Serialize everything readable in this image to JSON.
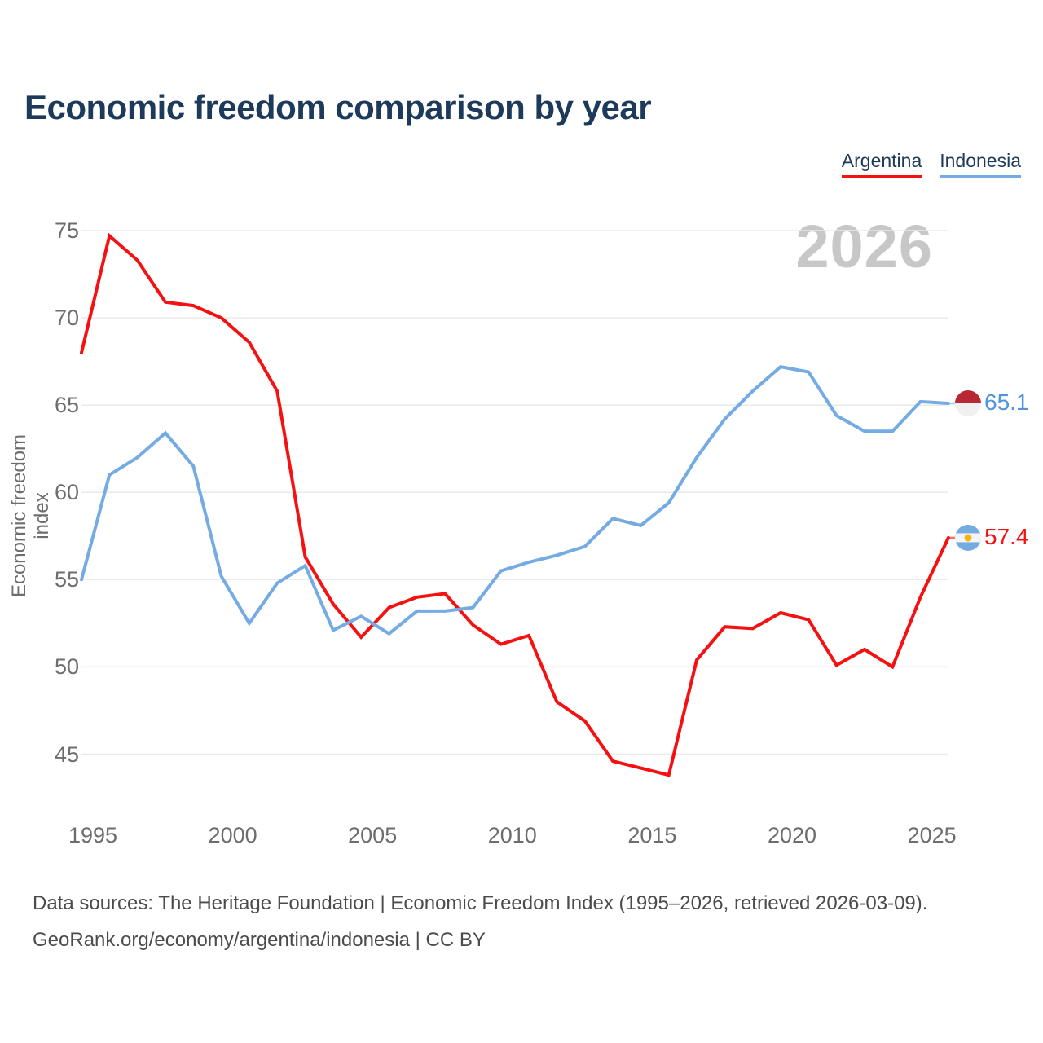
{
  "chart_data": {
    "type": "line",
    "title": "Economic freedom comparison by year",
    "ylabel": "Economic freedom index",
    "watermark": "2026",
    "grid": "horizontal-only",
    "legend_position": "top-right",
    "xlim": [
      1995,
      2026
    ],
    "ylim": [
      42.5,
      75
    ],
    "x_ticks": [
      1995,
      2000,
      2005,
      2010,
      2015,
      2020,
      2025
    ],
    "y_ticks": [
      45,
      50,
      55,
      60,
      65,
      70,
      75
    ],
    "x": [
      1995,
      1996,
      1997,
      1998,
      1999,
      2000,
      2001,
      2002,
      2003,
      2004,
      2005,
      2006,
      2007,
      2008,
      2009,
      2010,
      2011,
      2012,
      2013,
      2014,
      2015,
      2016,
      2017,
      2018,
      2019,
      2020,
      2021,
      2022,
      2023,
      2024,
      2025,
      2026
    ],
    "series": [
      {
        "name": "Argentina",
        "color": "#f51111",
        "label_color": "#f51111",
        "flag": "argentina",
        "end_label": "57.4",
        "values": [
          68.0,
          74.7,
          73.3,
          70.9,
          70.7,
          70.0,
          68.6,
          65.8,
          56.3,
          53.6,
          51.7,
          53.4,
          54.0,
          54.2,
          52.4,
          51.3,
          51.8,
          48.0,
          46.9,
          44.6,
          44.2,
          43.8,
          50.4,
          52.3,
          52.2,
          53.1,
          52.7,
          50.1,
          51.0,
          50.0,
          54.0,
          57.4
        ]
      },
      {
        "name": "Indonesia",
        "color": "#74abe3",
        "label_color": "#4f94dd",
        "flag": "indonesia",
        "end_label": "65.1",
        "values": [
          55.0,
          61.0,
          62.0,
          63.4,
          61.5,
          55.2,
          52.5,
          54.8,
          55.8,
          52.1,
          52.9,
          51.9,
          53.2,
          53.2,
          53.4,
          55.5,
          56.0,
          56.4,
          56.9,
          58.5,
          58.1,
          59.4,
          62.0,
          64.2,
          65.8,
          67.2,
          66.9,
          64.4,
          63.5,
          63.5,
          65.2,
          65.1
        ]
      }
    ]
  },
  "legend": {
    "items": [
      {
        "label": "Argentina",
        "color": "#f51111"
      },
      {
        "label": "Indonesia",
        "color": "#74abe3"
      }
    ]
  },
  "flag_colors": {
    "indonesia": {
      "top": "#b92735",
      "bottom": "#f0f0f0"
    },
    "argentina": {
      "stripe": "#74acdf",
      "middle": "#f5f5f5",
      "sun": "#f6b40e"
    }
  },
  "footer": {
    "line1": "Data sources: The Heritage Foundation | Economic Freedom Index (1995–2026, retrieved 2026-03-09).",
    "line2": "GeoRank.org/economy/argentina/indonesia | CC BY"
  }
}
